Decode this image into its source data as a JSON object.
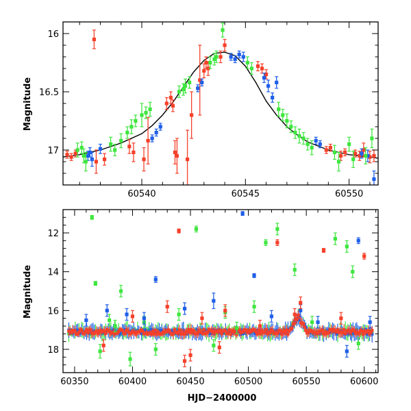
{
  "colors": {
    "red": "#f5402a",
    "blue": "#1f5fe8",
    "green": "#3ee63e",
    "model": "#000000",
    "frame": "#000000"
  },
  "chart_data": [
    {
      "type": "scatter",
      "title": "",
      "xlabel": "",
      "ylabel": "Magnitude",
      "xlim": [
        60536.2,
        60551.4
      ],
      "ylim": [
        17.3,
        15.9
      ],
      "y_inverted": true,
      "x_ticks": [
        60540,
        60545,
        60550
      ],
      "x_tick_labels": [
        "60540",
        "60545",
        "60550"
      ],
      "y_ticks": [
        16,
        16.5,
        17
      ],
      "y_tick_labels": [
        "16",
        "16.5",
        "17"
      ],
      "grid": false,
      "legend": "none",
      "model_curve": {
        "color": "black",
        "x": [
          60536.2,
          60537,
          60538,
          60539,
          60540,
          60540.5,
          60541,
          60541.5,
          60542,
          60542.5,
          60543,
          60543.5,
          60544,
          60544.5,
          60545,
          60545.5,
          60546,
          60546.5,
          60547,
          60547.5,
          60548,
          60549,
          60550,
          60551,
          60551.4
        ],
        "y": [
          17.06,
          17.04,
          17.0,
          16.94,
          16.86,
          16.79,
          16.7,
          16.59,
          16.46,
          16.33,
          16.23,
          16.17,
          16.16,
          16.19,
          16.28,
          16.42,
          16.58,
          16.7,
          16.8,
          16.87,
          16.93,
          17.0,
          17.04,
          17.06,
          17.07
        ]
      },
      "series": [
        {
          "color": "red",
          "x": [
            60536.4,
            60536.6,
            60536.8,
            60537.7,
            60537.8,
            60538.2,
            60539.4,
            60539.6,
            60540.1,
            60540.3,
            60541.2,
            60541.4,
            60541.5,
            60541.6,
            60541.7,
            60542.2,
            60542.4,
            60542.8,
            60543.0,
            60543.1,
            60543.2,
            60543.8,
            60544.0,
            60545.6,
            60545.8,
            60546.0,
            60548.9,
            60549.1,
            60549.6,
            60549.8,
            60550.3,
            60550.5,
            60550.7,
            60551.0,
            60551.2
          ],
          "y": [
            17.04,
            17.06,
            17.03,
            16.05,
            17.1,
            17.08,
            16.97,
            17.02,
            17.08,
            16.92,
            16.6,
            16.55,
            16.62,
            17.02,
            17.05,
            17.08,
            16.7,
            16.4,
            16.32,
            16.25,
            16.3,
            16.2,
            16.1,
            16.28,
            16.3,
            16.35,
            17.0,
            16.98,
            17.05,
            17.02,
            17.03,
            17.05,
            17.0,
            17.06,
            17.05
          ],
          "err": [
            0.03,
            0.03,
            0.03,
            0.08,
            0.1,
            0.05,
            0.06,
            0.08,
            0.1,
            0.2,
            0.05,
            0.05,
            0.05,
            0.1,
            0.15,
            0.25,
            0.2,
            0.3,
            0.06,
            0.05,
            0.06,
            0.05,
            0.05,
            0.04,
            0.04,
            0.04,
            0.03,
            0.03,
            0.04,
            0.03,
            0.03,
            0.04,
            0.06,
            0.05,
            0.05
          ]
        },
        {
          "color": "blue",
          "x": [
            60537.4,
            60537.5,
            60537.6,
            60538.0,
            60540.5,
            60540.7,
            60540.9,
            60542.7,
            60542.9,
            60544.3,
            60544.5,
            60544.7,
            60544.9,
            60545.9,
            60546.1,
            60546.3,
            60546.5,
            60548.4,
            60548.6,
            60550.6,
            60550.9,
            60551.2
          ],
          "y": [
            17.05,
            17.02,
            17.08,
            16.99,
            16.9,
            16.85,
            16.8,
            16.47,
            16.42,
            16.2,
            16.22,
            16.18,
            16.2,
            16.38,
            16.45,
            16.55,
            16.42,
            16.92,
            16.95,
            17.03,
            17.05,
            17.25
          ],
          "err": [
            0.04,
            0.04,
            0.06,
            0.04,
            0.03,
            0.03,
            0.03,
            0.03,
            0.03,
            0.03,
            0.03,
            0.03,
            0.04,
            0.04,
            0.05,
            0.04,
            0.05,
            0.03,
            0.03,
            0.04,
            0.05,
            0.07
          ]
        },
        {
          "color": "green",
          "x": [
            60536.9,
            60537.1,
            60537.2,
            60537.3,
            60538.5,
            60538.7,
            60539.0,
            60539.3,
            60539.5,
            60539.7,
            60540.0,
            60540.2,
            60540.4,
            60541.8,
            60542.0,
            60542.1,
            60542.3,
            60543.3,
            60543.5,
            60543.6,
            60543.9,
            60545.1,
            60545.3,
            60546.6,
            60546.8,
            60547.0,
            60547.2,
            60547.4,
            60547.6,
            60547.8,
            60548.0,
            60548.2,
            60549.3,
            60549.5,
            60550.0,
            60550.2,
            60550.8,
            60551.1
          ],
          "y": [
            17.0,
            16.98,
            17.05,
            17.1,
            16.95,
            17.0,
            16.92,
            16.85,
            16.8,
            16.75,
            16.7,
            16.68,
            16.65,
            16.5,
            16.48,
            16.45,
            16.42,
            16.25,
            16.22,
            16.2,
            15.97,
            16.25,
            16.3,
            16.65,
            16.7,
            16.75,
            16.8,
            16.85,
            16.88,
            16.9,
            16.95,
            16.98,
            17.02,
            17.1,
            16.95,
            17.08,
            17.05,
            16.9
          ],
          "err": [
            0.06,
            0.05,
            0.06,
            0.08,
            0.06,
            0.05,
            0.06,
            0.05,
            0.06,
            0.05,
            0.1,
            0.05,
            0.06,
            0.05,
            0.05,
            0.06,
            0.05,
            0.05,
            0.05,
            0.05,
            0.06,
            0.05,
            0.05,
            0.06,
            0.05,
            0.06,
            0.05,
            0.05,
            0.06,
            0.05,
            0.05,
            0.06,
            0.06,
            0.08,
            0.06,
            0.07,
            0.07,
            0.08
          ]
        }
      ]
    },
    {
      "type": "scatter",
      "title": "",
      "xlabel": "HJD−2400000",
      "ylabel": "Magnitude",
      "xlim": [
        60340,
        60612
      ],
      "ylim": [
        19.2,
        10.8
      ],
      "y_inverted": true,
      "x_ticks": [
        60350,
        60400,
        60450,
        60500,
        60550,
        60600
      ],
      "x_tick_labels": [
        "60350",
        "60400",
        "60450",
        "60500",
        "60550",
        "60600"
      ],
      "y_ticks": [
        12,
        14,
        16,
        18
      ],
      "y_tick_labels": [
        "12",
        "14",
        "16",
        "18"
      ],
      "grid": false,
      "legend": "none",
      "series": [
        {
          "color": "green",
          "x": [
            60365,
            60368,
            60372,
            60380,
            60385,
            60390,
            60398,
            60410,
            60420,
            60440,
            60455,
            60470,
            60480,
            60490,
            60505,
            60515,
            60525,
            60540,
            60555,
            60575,
            60585,
            60590,
            60595
          ],
          "y": [
            11.2,
            14.6,
            18.1,
            16.5,
            16.8,
            15.0,
            18.5,
            16.6,
            18.0,
            16.2,
            11.8,
            17.8,
            16.1,
            16.9,
            15.8,
            12.5,
            11.8,
            13.9,
            16.6,
            12.3,
            12.7,
            14.0,
            17.7
          ],
          "err": [
            0.1,
            0.1,
            0.35,
            0.3,
            0.3,
            0.3,
            0.35,
            0.3,
            0.3,
            0.3,
            0.15,
            0.3,
            0.3,
            0.3,
            0.3,
            0.15,
            0.3,
            0.3,
            0.3,
            0.3,
            0.3,
            0.3,
            0.3
          ]
        },
        {
          "color": "blue",
          "x": [
            60360,
            60378,
            60395,
            60410,
            60420,
            60445,
            60470,
            60495,
            60505,
            60520,
            60545,
            60560,
            60585,
            60595,
            60605
          ],
          "y": [
            16.5,
            16.0,
            16.2,
            16.4,
            14.4,
            15.9,
            15.5,
            11.0,
            14.2,
            16.3,
            16.0,
            16.6,
            18.1,
            12.4,
            16.6
          ],
          "err": [
            0.3,
            0.3,
            0.3,
            0.3,
            0.15,
            0.3,
            0.4,
            0.1,
            0.1,
            0.3,
            0.3,
            0.3,
            0.3,
            0.15,
            0.3
          ]
        },
        {
          "color": "red",
          "x": [
            60375,
            60400,
            60430,
            60440,
            60445,
            60450,
            60460,
            60475,
            60480,
            60510,
            60525,
            60540,
            60545,
            60565,
            60580,
            60600
          ],
          "y": [
            17.8,
            16.3,
            15.8,
            11.9,
            18.6,
            18.3,
            16.4,
            17.9,
            16.0,
            16.8,
            12.5,
            16.2,
            15.6,
            12.9,
            16.4,
            13.2
          ],
          "err": [
            0.3,
            0.3,
            0.3,
            0.1,
            0.3,
            0.3,
            0.3,
            0.3,
            0.3,
            0.3,
            0.15,
            0.3,
            0.3,
            0.1,
            0.3,
            0.15
          ]
        }
      ]
    }
  ]
}
